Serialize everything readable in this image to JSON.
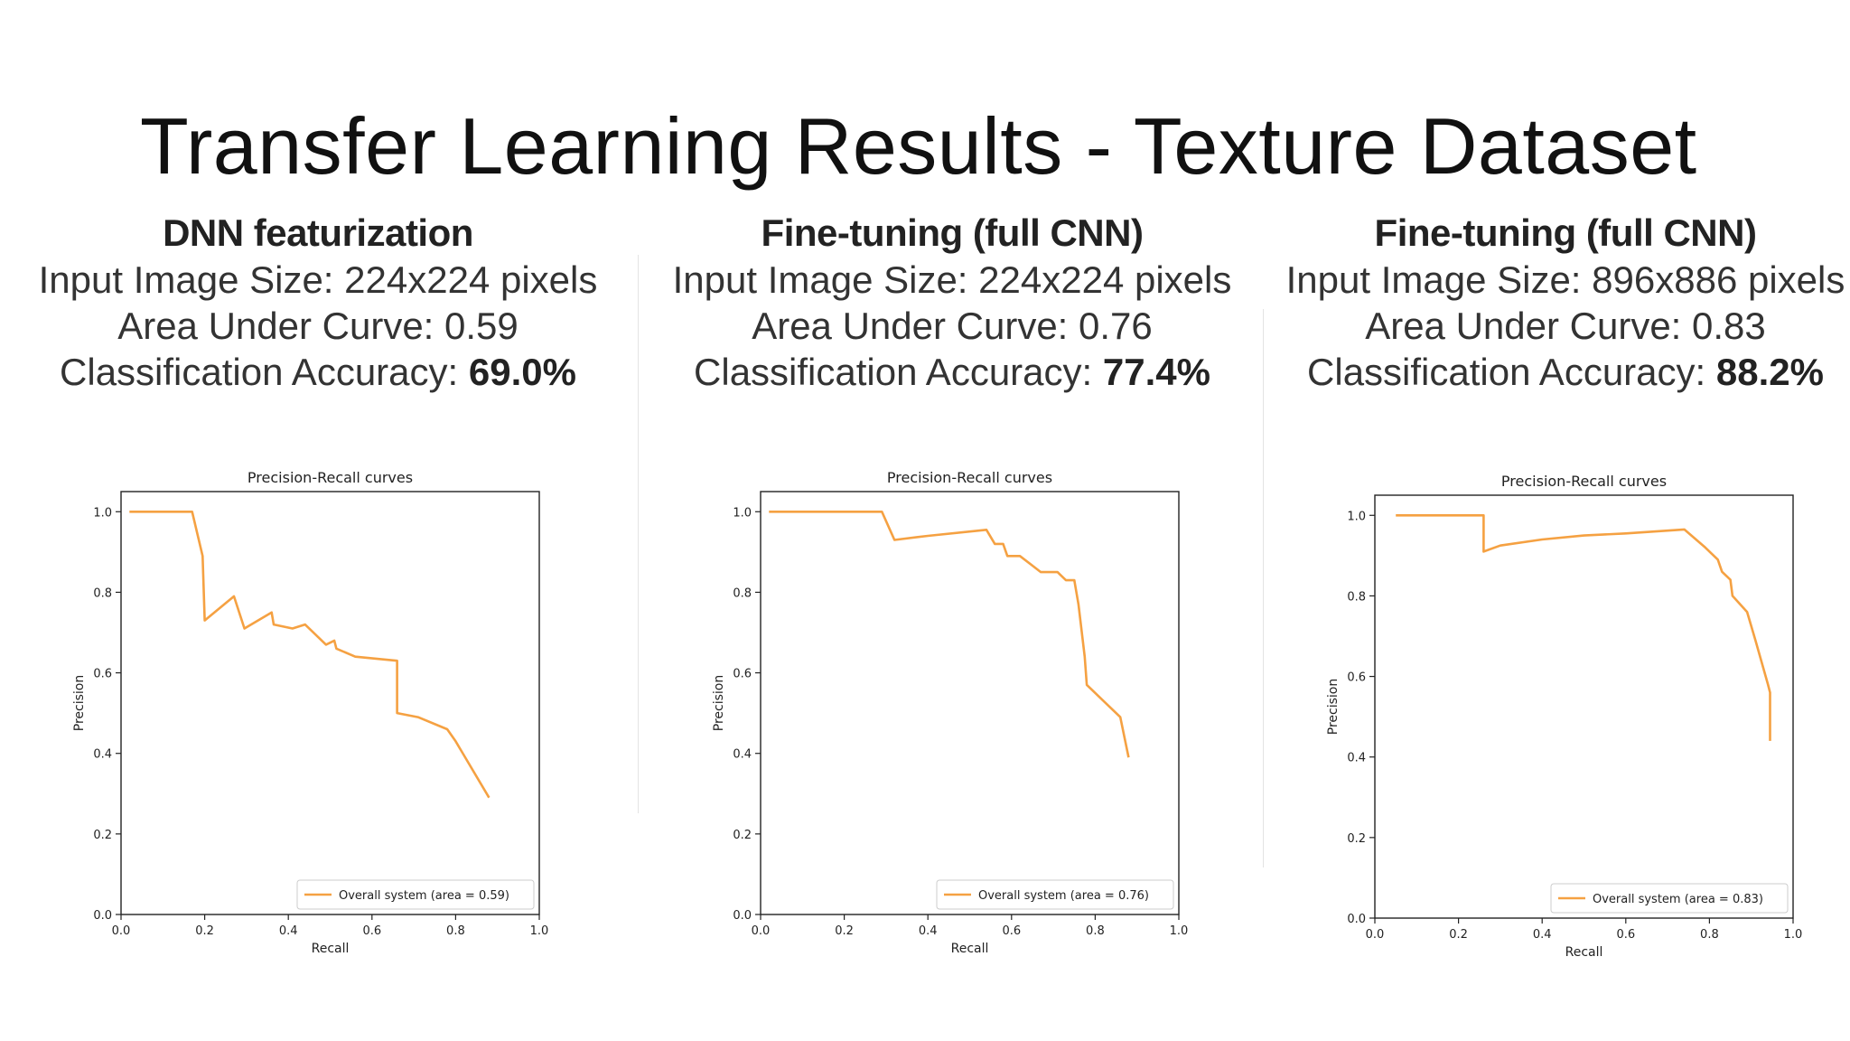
{
  "slide": {
    "title": "Transfer Learning Results - Texture Dataset"
  },
  "panels": [
    {
      "heading": "DNN featurization",
      "size_line": "Input Image Size: 224x224 pixels",
      "auc_line": "Area Under Curve: 0.59",
      "accuracy_prefix": "Classification Accuracy: ",
      "accuracy_value": "69.0%"
    },
    {
      "heading": "Fine-tuning (full CNN)",
      "size_line": "Input Image Size: 224x224 pixels",
      "auc_line": "Area Under Curve: 0.76",
      "accuracy_prefix": "Classification Accuracy: ",
      "accuracy_value": "77.4%"
    },
    {
      "heading": "Fine-tuning (full CNN)",
      "size_line": "Input Image Size: 896x886 pixels",
      "auc_line": "Area Under Curve: 0.83",
      "accuracy_prefix": "Classification Accuracy: ",
      "accuracy_value": "88.2%"
    }
  ],
  "colors": {
    "series": "#f5a142",
    "axes": "#222222"
  },
  "chart_data": [
    {
      "type": "line",
      "title": "Precision-Recall curves",
      "xlabel": "Recall",
      "ylabel": "Precision",
      "xlim": [
        0.0,
        1.0
      ],
      "ylim": [
        0.0,
        1.05
      ],
      "xticks": [
        "0.0",
        "0.2",
        "0.4",
        "0.6",
        "0.8",
        "1.0"
      ],
      "yticks": [
        "0.0",
        "0.2",
        "0.4",
        "0.6",
        "0.8",
        "1.0"
      ],
      "grid": false,
      "legend_position": "lower-right",
      "series": [
        {
          "name": "Overall system (area = 0.59)",
          "x": [
            0.02,
            0.17,
            0.195,
            0.2,
            0.27,
            0.295,
            0.36,
            0.365,
            0.41,
            0.44,
            0.49,
            0.51,
            0.515,
            0.56,
            0.66,
            0.66,
            0.71,
            0.78,
            0.8,
            0.88
          ],
          "y": [
            1.0,
            1.0,
            0.89,
            0.73,
            0.79,
            0.71,
            0.75,
            0.72,
            0.71,
            0.72,
            0.67,
            0.68,
            0.66,
            0.64,
            0.63,
            0.5,
            0.49,
            0.46,
            0.43,
            0.29
          ]
        }
      ]
    },
    {
      "type": "line",
      "title": "Precision-Recall curves",
      "xlabel": "Recall",
      "ylabel": "Precision",
      "xlim": [
        0.0,
        1.0
      ],
      "ylim": [
        0.0,
        1.05
      ],
      "xticks": [
        "0.0",
        "0.2",
        "0.4",
        "0.6",
        "0.8",
        "1.0"
      ],
      "yticks": [
        "0.0",
        "0.2",
        "0.4",
        "0.6",
        "0.8",
        "1.0"
      ],
      "grid": false,
      "legend_position": "lower-right",
      "series": [
        {
          "name": "Overall system (area = 0.76)",
          "x": [
            0.02,
            0.29,
            0.32,
            0.4,
            0.54,
            0.56,
            0.58,
            0.59,
            0.62,
            0.67,
            0.71,
            0.73,
            0.75,
            0.76,
            0.775,
            0.78,
            0.82,
            0.86,
            0.88
          ],
          "y": [
            1.0,
            1.0,
            0.93,
            0.94,
            0.955,
            0.92,
            0.92,
            0.89,
            0.89,
            0.85,
            0.85,
            0.83,
            0.83,
            0.77,
            0.64,
            0.57,
            0.53,
            0.49,
            0.39
          ]
        }
      ]
    },
    {
      "type": "line",
      "title": "Precision-Recall curves",
      "xlabel": "Recall",
      "ylabel": "Precision",
      "xlim": [
        0.0,
        1.0
      ],
      "ylim": [
        0.0,
        1.05
      ],
      "xticks": [
        "0.0",
        "0.2",
        "0.4",
        "0.6",
        "0.8",
        "1.0"
      ],
      "yticks": [
        "0.0",
        "0.2",
        "0.4",
        "0.6",
        "0.8",
        "1.0"
      ],
      "grid": false,
      "legend_position": "lower-right",
      "series": [
        {
          "name": "Overall system (area = 0.83)",
          "x": [
            0.05,
            0.26,
            0.26,
            0.3,
            0.4,
            0.5,
            0.6,
            0.74,
            0.79,
            0.82,
            0.83,
            0.85,
            0.855,
            0.89,
            0.91,
            0.94,
            0.945,
            0.945
          ],
          "y": [
            1.0,
            1.0,
            0.91,
            0.925,
            0.94,
            0.95,
            0.955,
            0.965,
            0.92,
            0.89,
            0.86,
            0.84,
            0.8,
            0.76,
            0.69,
            0.58,
            0.56,
            0.44
          ]
        }
      ]
    }
  ]
}
